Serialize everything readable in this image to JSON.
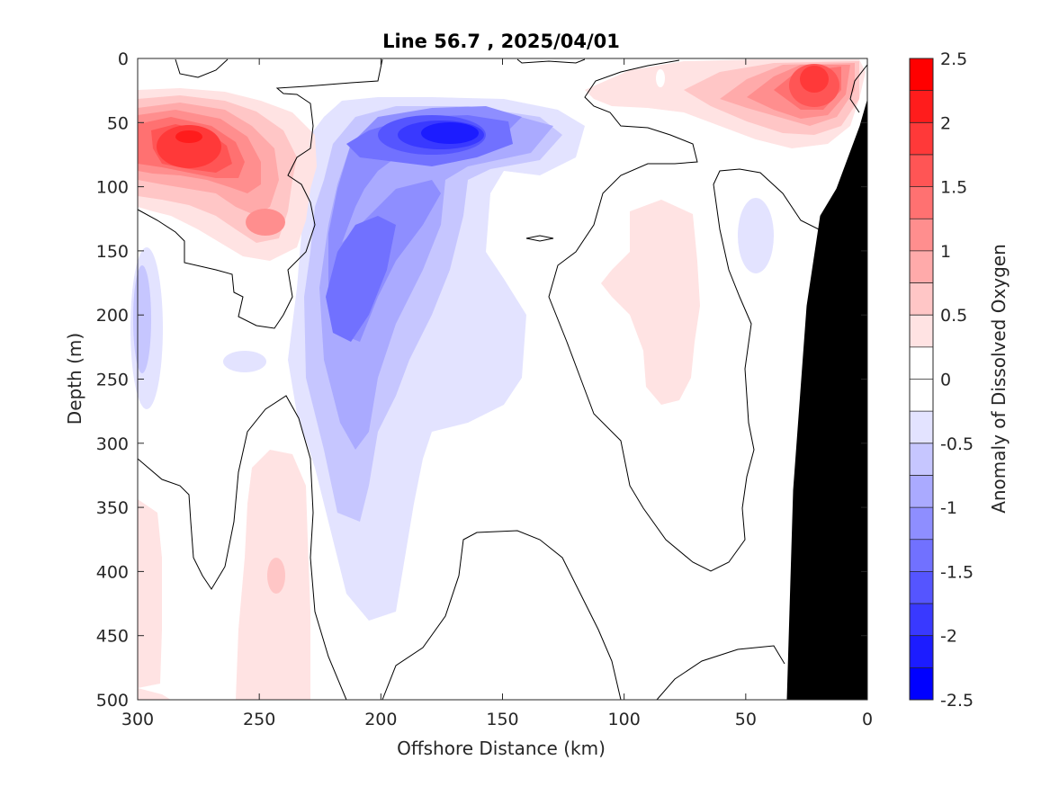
{
  "chart_data": {
    "type": "heatmap",
    "title": "Line 56.7 , 2025/04/01",
    "xlabel": "Offshore Distance (km)",
    "ylabel": "Depth (m)",
    "xlim": [
      300,
      0
    ],
    "ylim": [
      0,
      500
    ],
    "x_reversed": true,
    "y_reversed": true,
    "xticks": [
      "300",
      "250",
      "200",
      "150",
      "100",
      "50",
      "0"
    ],
    "yticks": [
      "0",
      "50",
      "100",
      "150",
      "200",
      "250",
      "300",
      "350",
      "400",
      "450",
      "500"
    ],
    "colorbar": {
      "label": "Anomaly of Dissolved Oxygen",
      "range": [
        -2.5,
        2.5
      ],
      "ticks": [
        "2.5",
        "2",
        "1.5",
        "1",
        "0.5",
        "0",
        "-0.5",
        "-1",
        "-1.5",
        "-2",
        "-2.5"
      ],
      "levels": [
        -2.5,
        -2.25,
        -2,
        -1.75,
        -1.5,
        -1.25,
        -1,
        -0.75,
        -0.5,
        -0.25,
        0.25,
        0.5,
        0.75,
        1,
        1.25,
        1.5,
        1.75,
        2,
        2.25,
        2.5
      ],
      "colors": [
        "#0000ff",
        "#1c1cff",
        "#3939ff",
        "#5555ff",
        "#7171ff",
        "#8e8eff",
        "#aaaaff",
        "#c6c6ff",
        "#e3e3ff",
        "#ffffff",
        "#ffffff",
        "#ffe3e3",
        "#ffc6c6",
        "#ffaaaa",
        "#ff8e8e",
        "#ff7171",
        "#ff5555",
        "#ff3939",
        "#ff1c1c",
        "#ff0000"
      ]
    },
    "features": [
      {
        "kind": "positive",
        "center": [
          270,
          65
        ],
        "peak": 2.3
      },
      {
        "kind": "positive",
        "center": [
          25,
          20
        ],
        "peak": 2.2
      },
      {
        "kind": "positive",
        "center": [
          75,
          15
        ],
        "peak": 0.6
      },
      {
        "kind": "negative",
        "center": [
          165,
          60
        ],
        "peak": -2.2
      },
      {
        "kind": "negative",
        "center": [
          200,
          190
        ],
        "peak": -1.5
      },
      {
        "kind": "negative",
        "center": [
          298,
          220
        ],
        "peak": -0.8
      },
      {
        "kind": "positive",
        "center": [
          70,
          190
        ],
        "peak": 0.5
      },
      {
        "kind": "positive",
        "center": [
          245,
          400
        ],
        "peak": 0.6
      }
    ],
    "bathymetry_color": "#000000"
  }
}
